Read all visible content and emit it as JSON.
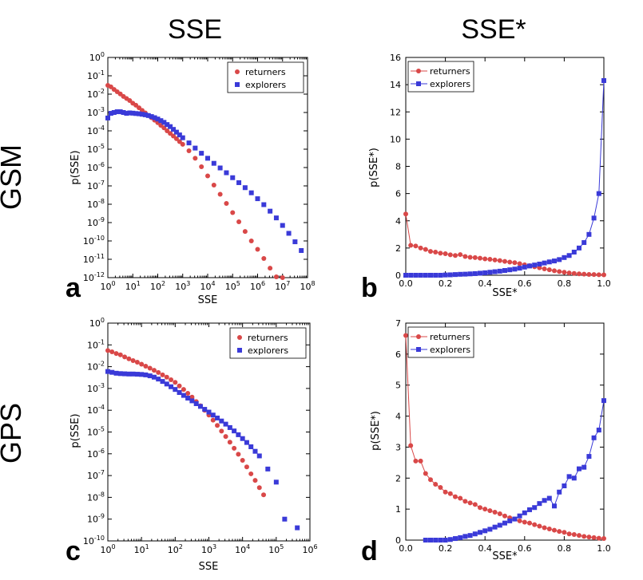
{
  "column_titles": [
    "SSE",
    "SSE*"
  ],
  "row_titles": [
    "GSM",
    "GPS"
  ],
  "colors": {
    "returners": "#d94848",
    "explorers": "#3a3ad8"
  },
  "chart_data": [
    {
      "id": "a",
      "type": "scatter",
      "panel_letter": "a",
      "xlabel": "SSE",
      "ylabel": "p(SSE)",
      "xscale": "log",
      "yscale": "log",
      "xlim": [
        1,
        100000000
      ],
      "ylim": [
        1e-12,
        1
      ],
      "legend": "top-right",
      "series": [
        {
          "name": "returners",
          "marker": "circle",
          "line": false,
          "x": [
            1,
            1.33,
            1.78,
            2.37,
            3.16,
            4.22,
            5.62,
            7.5,
            10,
            13.3,
            17.8,
            23.7,
            31.6,
            42.2,
            56.2,
            75,
            100,
            133,
            178,
            237,
            316,
            422,
            562,
            750,
            1000,
            1778,
            3162,
            5623,
            10000,
            17783,
            31623,
            56234,
            100000,
            177828,
            316228,
            562341,
            1000000,
            1778279,
            3162278,
            5623413,
            10000000
          ],
          "y": [
            0.03,
            0.025,
            0.018,
            0.0135,
            0.0102,
            0.0075,
            0.0058,
            0.0045,
            0.0032,
            0.0025,
            0.0018,
            0.0013,
            0.00095,
            0.0007,
            0.00052,
            0.00038,
            0.00028,
            0.0002,
            0.000145,
            0.0001,
            7.2e-05,
            5.2e-05,
            3.7e-05,
            2.6e-05,
            1.85e-05,
            8.2e-06,
            3.2e-06,
            1.1e-06,
            3.5e-07,
            1.1e-07,
            3.5e-08,
            1.1e-08,
            3.5e-09,
            1.1e-09,
            3.3e-10,
            1e-10,
            3.5e-11,
            1.1e-11,
            3.3e-12,
            1.1e-12,
            3.5e-13
          ]
        },
        {
          "name": "explorers",
          "marker": "square",
          "line": false,
          "x": [
            1,
            1.33,
            1.78,
            2.37,
            3.16,
            4.22,
            5.62,
            7.5,
            10,
            13.3,
            17.8,
            23.7,
            31.6,
            42.2,
            56.2,
            75,
            100,
            133,
            178,
            237,
            316,
            422,
            562,
            750,
            1000,
            1778,
            3162,
            5623,
            10000,
            17783,
            31623,
            56234,
            100000,
            177828,
            316228,
            562341,
            1000000,
            1778279,
            3162278,
            5623413,
            10000000,
            17782794,
            31622777,
            56234133
          ],
          "y": [
            0.0005,
            0.0009,
            0.001,
            0.0011,
            0.0011,
            0.001,
            0.0009,
            0.00095,
            0.00092,
            0.00088,
            0.00085,
            0.0008,
            0.00075,
            0.00068,
            0.0006,
            0.00052,
            0.00044,
            0.00036,
            0.00029,
            0.00022,
            0.00017,
            0.00012,
            8.5e-05,
            6e-05,
            4.2e-05,
            2.2e-05,
            1.15e-05,
            6e-06,
            3.2e-06,
            1.7e-06,
            9.5e-07,
            5.2e-07,
            2.8e-07,
            1.5e-07,
            8e-08,
            4.2e-08,
            2e-08,
            9.5e-09,
            4.2e-09,
            1.8e-09,
            7e-10,
            2.6e-10,
            9e-11,
            3e-11
          ]
        }
      ]
    },
    {
      "id": "b",
      "type": "line",
      "panel_letter": "b",
      "xlabel": "SSE*",
      "ylabel": "p(SSE*)",
      "xlim": [
        0,
        1
      ],
      "ylim": [
        0,
        16
      ],
      "xticks": [
        "0.0",
        "0.2",
        "0.4",
        "0.6",
        "0.8",
        "1.0"
      ],
      "yticks": [
        "0",
        "2",
        "4",
        "6",
        "8",
        "10",
        "12",
        "14",
        "16"
      ],
      "legend": "top-left",
      "series": [
        {
          "name": "returners",
          "marker": "circle",
          "line": true,
          "x": [
            0,
            0.025,
            0.05,
            0.075,
            0.1,
            0.125,
            0.15,
            0.175,
            0.2,
            0.225,
            0.25,
            0.275,
            0.3,
            0.325,
            0.35,
            0.375,
            0.4,
            0.425,
            0.45,
            0.475,
            0.5,
            0.525,
            0.55,
            0.575,
            0.6,
            0.625,
            0.65,
            0.675,
            0.7,
            0.725,
            0.75,
            0.775,
            0.8,
            0.825,
            0.85,
            0.875,
            0.9,
            0.925,
            0.95,
            0.975,
            1.0
          ],
          "y": [
            4.5,
            2.2,
            2.15,
            2.0,
            1.9,
            1.75,
            1.7,
            1.62,
            1.58,
            1.5,
            1.45,
            1.52,
            1.38,
            1.32,
            1.3,
            1.25,
            1.2,
            1.17,
            1.12,
            1.08,
            1.02,
            0.97,
            0.92,
            0.85,
            0.77,
            0.7,
            0.62,
            0.55,
            0.47,
            0.4,
            0.33,
            0.27,
            0.22,
            0.17,
            0.13,
            0.1,
            0.08,
            0.06,
            0.05,
            0.04,
            0.03
          ]
        },
        {
          "name": "explorers",
          "marker": "square",
          "line": true,
          "x": [
            0,
            0.025,
            0.05,
            0.075,
            0.1,
            0.125,
            0.15,
            0.175,
            0.2,
            0.225,
            0.25,
            0.275,
            0.3,
            0.325,
            0.35,
            0.375,
            0.4,
            0.425,
            0.45,
            0.475,
            0.5,
            0.525,
            0.55,
            0.575,
            0.6,
            0.625,
            0.65,
            0.675,
            0.7,
            0.725,
            0.75,
            0.775,
            0.8,
            0.825,
            0.85,
            0.875,
            0.9,
            0.925,
            0.95,
            0.975,
            1.0
          ],
          "y": [
            0,
            0,
            0,
            0,
            0,
            0,
            0,
            0,
            0.02,
            0.03,
            0.05,
            0.07,
            0.08,
            0.1,
            0.12,
            0.15,
            0.18,
            0.22,
            0.26,
            0.3,
            0.35,
            0.4,
            0.45,
            0.52,
            0.6,
            0.68,
            0.75,
            0.82,
            0.9,
            0.98,
            1.05,
            1.15,
            1.3,
            1.45,
            1.7,
            2.0,
            2.4,
            3.0,
            4.2,
            6.0,
            14.3
          ]
        }
      ]
    },
    {
      "id": "c",
      "type": "scatter",
      "panel_letter": "c",
      "xlabel": "SSE",
      "ylabel": "p(SSE)",
      "xscale": "log",
      "yscale": "log",
      "xlim": [
        1,
        1000000
      ],
      "ylim": [
        1e-10,
        1
      ],
      "legend": "top-right",
      "series": [
        {
          "name": "returners",
          "marker": "circle",
          "line": false,
          "x": [
            1,
            1.33,
            1.78,
            2.37,
            3.16,
            4.22,
            5.62,
            7.5,
            10,
            13.3,
            17.8,
            23.7,
            31.6,
            42.2,
            56.2,
            75,
            100,
            133,
            178,
            237,
            316,
            422,
            562,
            750,
            1000,
            1333,
            1778,
            2371,
            3162,
            4217,
            5623,
            7499,
            10000,
            13335,
            17783,
            23714,
            31623,
            42170
          ],
          "y": [
            0.055,
            0.048,
            0.04,
            0.035,
            0.028,
            0.023,
            0.019,
            0.016,
            0.013,
            0.0105,
            0.0085,
            0.0068,
            0.0054,
            0.0042,
            0.0033,
            0.0025,
            0.0019,
            0.0013,
            0.0009,
            0.0006,
            0.0004,
            0.00025,
            0.00016,
            0.0001,
            6e-05,
            3.5e-05,
            2e-05,
            1.1e-05,
            6.2e-06,
            3.4e-06,
            1.8e-06,
            9.5e-07,
            5e-07,
            2.5e-07,
            1.2e-07,
            6e-08,
            2.8e-08,
            1.3e-08
          ]
        },
        {
          "name": "explorers",
          "marker": "square",
          "line": false,
          "x": [
            1,
            1.33,
            1.78,
            2.37,
            3.16,
            4.22,
            5.62,
            7.5,
            10,
            13.3,
            17.8,
            23.7,
            31.6,
            42.2,
            56.2,
            75,
            100,
            133,
            178,
            237,
            316,
            422,
            562,
            750,
            1000,
            1333,
            1778,
            2371,
            3162,
            4217,
            5623,
            7499,
            10000,
            13335,
            17783,
            23714,
            31623,
            56234,
            100000,
            177828,
            421696
          ],
          "y": [
            0.006,
            0.0055,
            0.005,
            0.0048,
            0.0047,
            0.0046,
            0.0046,
            0.0045,
            0.0044,
            0.0042,
            0.0038,
            0.0033,
            0.0027,
            0.0021,
            0.0016,
            0.0012,
            0.0009,
            0.00065,
            0.00048,
            0.00036,
            0.00027,
            0.0002,
            0.00015,
            0.00011,
            8.2e-05,
            6e-05,
            4.4e-05,
            3.2e-05,
            2.3e-05,
            1.6e-05,
            1.12e-05,
            7.5e-06,
            5e-06,
            3.3e-06,
            2.1e-06,
            1.3e-06,
            8e-07,
            2e-07,
            5e-08,
            1e-09,
            4e-10
          ]
        }
      ]
    },
    {
      "id": "d",
      "type": "line",
      "panel_letter": "d",
      "xlabel": "SSE*",
      "ylabel": "p(SSE*)",
      "xlim": [
        0,
        1
      ],
      "ylim": [
        0,
        7
      ],
      "xticks": [
        "0.0",
        "0.2",
        "0.4",
        "0.6",
        "0.8",
        "1.0"
      ],
      "yticks": [
        "0",
        "1",
        "2",
        "3",
        "4",
        "5",
        "6",
        "7"
      ],
      "legend": "top-left",
      "series": [
        {
          "name": "returners",
          "marker": "circle",
          "line": true,
          "x": [
            0,
            0.025,
            0.05,
            0.075,
            0.1,
            0.125,
            0.15,
            0.175,
            0.2,
            0.225,
            0.25,
            0.275,
            0.3,
            0.325,
            0.35,
            0.375,
            0.4,
            0.425,
            0.45,
            0.475,
            0.5,
            0.525,
            0.55,
            0.575,
            0.6,
            0.625,
            0.65,
            0.675,
            0.7,
            0.725,
            0.75,
            0.775,
            0.8,
            0.825,
            0.85,
            0.875,
            0.9,
            0.925,
            0.95,
            0.975,
            1.0
          ],
          "y": [
            6.6,
            3.05,
            2.55,
            2.55,
            2.15,
            1.95,
            1.8,
            1.7,
            1.55,
            1.5,
            1.4,
            1.35,
            1.25,
            1.2,
            1.15,
            1.05,
            1.0,
            0.95,
            0.9,
            0.85,
            0.78,
            0.72,
            0.68,
            0.62,
            0.58,
            0.55,
            0.5,
            0.45,
            0.4,
            0.36,
            0.32,
            0.28,
            0.25,
            0.2,
            0.18,
            0.15,
            0.12,
            0.1,
            0.08,
            0.06,
            0.05
          ]
        },
        {
          "name": "explorers",
          "marker": "square",
          "line": true,
          "x": [
            0.1,
            0.125,
            0.15,
            0.175,
            0.2,
            0.225,
            0.25,
            0.275,
            0.3,
            0.325,
            0.35,
            0.375,
            0.4,
            0.425,
            0.45,
            0.475,
            0.5,
            0.525,
            0.55,
            0.575,
            0.6,
            0.625,
            0.65,
            0.675,
            0.7,
            0.725,
            0.75,
            0.775,
            0.8,
            0.825,
            0.85,
            0.875,
            0.9,
            0.925,
            0.95,
            0.975,
            1.0
          ],
          "y": [
            0,
            0,
            0,
            0,
            0,
            0.02,
            0.05,
            0.08,
            0.12,
            0.15,
            0.2,
            0.25,
            0.3,
            0.35,
            0.42,
            0.48,
            0.55,
            0.62,
            0.68,
            0.78,
            0.88,
            0.98,
            1.05,
            1.18,
            1.28,
            1.35,
            1.1,
            1.55,
            1.75,
            2.05,
            2.0,
            2.3,
            2.35,
            2.7,
            3.3,
            3.55,
            4.5
          ]
        }
      ]
    }
  ]
}
